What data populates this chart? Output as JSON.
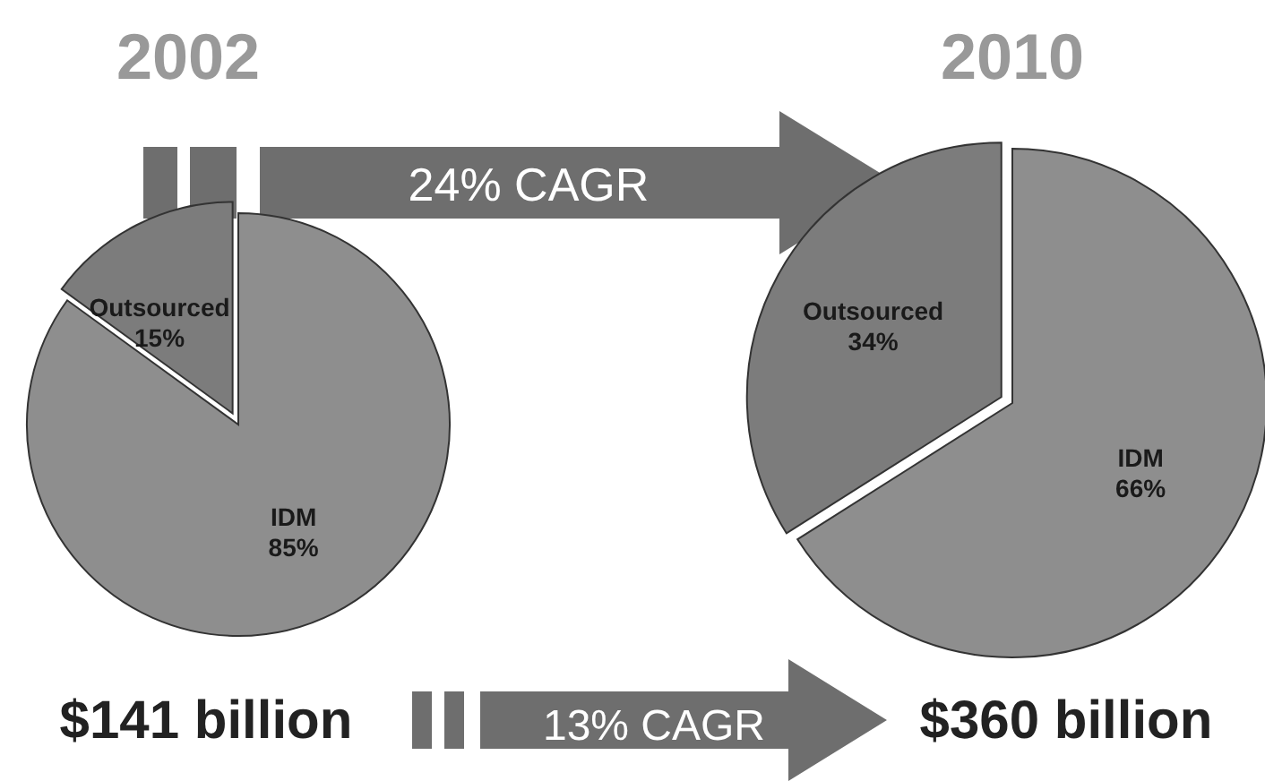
{
  "chart_data": [
    {
      "type": "pie",
      "title": "2002",
      "categories": [
        "Outsourced",
        "IDM"
      ],
      "values": [
        15,
        85
      ],
      "colors": [
        "#7c7c7c",
        "#8e8e8e"
      ],
      "value_labels": [
        "15%",
        "85%"
      ],
      "annotations": [
        "$141 billion",
        "24% CAGR",
        "13% CAGR"
      ]
    },
    {
      "type": "pie",
      "title": "2010",
      "categories": [
        "Outsourced",
        "IDM"
      ],
      "values": [
        34,
        66
      ],
      "colors": [
        "#7c7c7c",
        "#8e8e8e"
      ],
      "value_labels": [
        "34%",
        "66%"
      ],
      "annotations": [
        "$360 billion"
      ]
    }
  ]
}
